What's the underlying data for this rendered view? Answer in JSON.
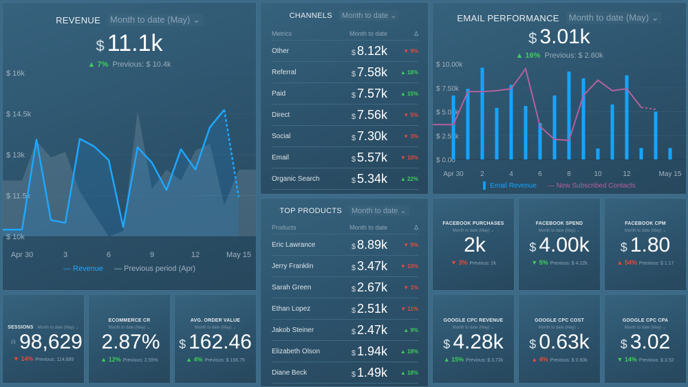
{
  "revenue": {
    "title": "REVENUE",
    "period": "Month to date (May)",
    "currency": "$",
    "value": "11.1k",
    "delta": "7%",
    "delta_dir": "up",
    "previous": "Previous: $ 10.4k",
    "chart_data": {
      "type": "line",
      "x": [
        "Apr 29",
        "Apr 30",
        "May 1",
        "May 2",
        "May 3",
        "May 4",
        "May 5",
        "May 6",
        "May 7",
        "May 8",
        "May 9",
        "May 10",
        "May 11",
        "May 12",
        "May 13",
        "May 14",
        "May 15"
      ],
      "xticks": [
        "Apr 30",
        "3",
        "6",
        "9",
        "12",
        "May 15"
      ],
      "yticks": [
        "$ 10k",
        "$ 11.5k",
        "$ 13k",
        "$ 14.5k",
        "$ 16k"
      ],
      "ylim": [
        10000,
        16000
      ],
      "series": [
        {
          "name": "Revenue",
          "color": "#1ea7ff",
          "values": [
            10250,
            10250,
            13550,
            10600,
            10500,
            13580,
            13300,
            12800,
            10350,
            13270,
            12700,
            11700,
            13200,
            12450,
            14000,
            14650,
            11450
          ],
          "last_segment_dashed": true
        },
        {
          "name": "Previous period (Apr)",
          "color": "#8a9ba8",
          "style": "area",
          "values": [
            12050,
            12050,
            13500,
            12900,
            13100,
            11650,
            10800,
            10000,
            10200,
            14600,
            11750,
            12450,
            12050,
            13150,
            13400,
            11150,
            12450
          ]
        }
      ]
    }
  },
  "channels": {
    "title": "CHANNELS",
    "period": "Month to date",
    "headers": [
      "Metrics",
      "Month to date",
      "Δ"
    ],
    "rows": [
      {
        "name": "Other",
        "cur": "$",
        "value": "8.12k",
        "delta": "9%",
        "dir": "dn"
      },
      {
        "name": "Referral",
        "cur": "$",
        "value": "7.58k",
        "delta": "18%",
        "dir": "up"
      },
      {
        "name": "Paid",
        "cur": "$",
        "value": "7.57k",
        "delta": "15%",
        "dir": "up"
      },
      {
        "name": "Direct",
        "cur": "$",
        "value": "7.56k",
        "delta": "5%",
        "dir": "dn"
      },
      {
        "name": "Social",
        "cur": "$",
        "value": "7.30k",
        "delta": "3%",
        "dir": "dn"
      },
      {
        "name": "Email",
        "cur": "$",
        "value": "5.57k",
        "delta": "10%",
        "dir": "dn"
      },
      {
        "name": "Organic Search",
        "cur": "$",
        "value": "5.34k",
        "delta": "22%",
        "dir": "up"
      }
    ]
  },
  "products": {
    "title": "TOP PRODUCTS",
    "period": "Month to date",
    "headers": [
      "Products",
      "Month to date",
      "Δ"
    ],
    "rows": [
      {
        "name": "Eric Lawrance",
        "cur": "$",
        "value": "8.89k",
        "delta": "9%",
        "dir": "dn"
      },
      {
        "name": "Jerry Franklin",
        "cur": "$",
        "value": "3.47k",
        "delta": "10%",
        "dir": "dn"
      },
      {
        "name": "Sarah Green",
        "cur": "$",
        "value": "2.67k",
        "delta": "1%",
        "dir": "dn"
      },
      {
        "name": "Ethan Lopez",
        "cur": "$",
        "value": "2.51k",
        "delta": "11%",
        "dir": "dn"
      },
      {
        "name": "Jakob Steiner",
        "cur": "$",
        "value": "2.47k",
        "delta": "9%",
        "dir": "up"
      },
      {
        "name": "Elizabeth Olson",
        "cur": "$",
        "value": "1.94k",
        "delta": "18%",
        "dir": "up"
      },
      {
        "name": "Diane Beck",
        "cur": "$",
        "value": "1.49k",
        "delta": "18%",
        "dir": "up"
      }
    ]
  },
  "email": {
    "title": "EMAIL PERFORMANCE",
    "period": "Month to date (May)",
    "currency": "$",
    "value": "3.01k",
    "delta": "16%",
    "delta_dir": "up",
    "previous": "Previous: $ 2.60k",
    "chart_data": {
      "type": "bar+line",
      "x": [
        "Apr 30",
        "May 1",
        "May 2",
        "May 3",
        "May 4",
        "May 5",
        "May 6",
        "May 7",
        "May 8",
        "May 9",
        "May 10",
        "May 11",
        "May 12",
        "May 13",
        "May 14",
        "May 15"
      ],
      "xticks": [
        "Apr 30",
        "2",
        "4",
        "6",
        "8",
        "10",
        "12",
        "May 15"
      ],
      "yticks": [
        "$ 0.00",
        "$ 2.50k",
        "$ 5.00k",
        "$ 7.50k",
        "$ 10.00k"
      ],
      "ylim": [
        0,
        10000
      ],
      "series": [
        {
          "name": "Email Revenue",
          "type": "bar",
          "color": "#15a4ff",
          "values": [
            6700,
            7400,
            9600,
            5400,
            7800,
            5600,
            3800,
            6700,
            9200,
            8500,
            1150,
            5750,
            8800,
            1200,
            5000,
            1200
          ]
        },
        {
          "name": "New Subscribed Contacts",
          "type": "line",
          "color": "#b4609e",
          "values": [
            3650,
            7100,
            7100,
            7200,
            7400,
            9500,
            3450,
            2100,
            2000,
            6700,
            8300,
            7200,
            7400,
            5450,
            5250,
            null
          ],
          "last_segment_dashed": true
        }
      ]
    }
  },
  "tiles": [
    {
      "title": "SESSIONS",
      "period": "Month to date (May)",
      "cur": "",
      "value": "98,629",
      "delta": "14%",
      "dir": "dn",
      "arrow": "down",
      "previous": "Previous: 114,689",
      "icon": "user-icon"
    },
    {
      "title": "ECOMMERCE CR",
      "period": "Month to date (May)",
      "cur": "",
      "value": "2.87%",
      "delta": "12%",
      "dir": "up",
      "arrow": "up",
      "previous": "Previous: 2.55%"
    },
    {
      "title": "AVG. ORDER VALUE",
      "period": "Month to date (May)",
      "cur": "$",
      "value": "162.46",
      "delta": "4%",
      "dir": "up",
      "arrow": "up",
      "previous": "Previous: $ 156.75"
    },
    {
      "title": "FACEBOOK PURCHASES",
      "period": "Month to date (May)",
      "cur": "",
      "value": "2k",
      "delta": "3%",
      "dir": "dn",
      "arrow": "down",
      "previous": "Previous: 2k"
    },
    {
      "title": "FACEBOOK SPEND",
      "period": "Month to date (May)",
      "cur": "$",
      "value": "4.00k",
      "delta": "5%",
      "dir": "up",
      "arrow": "down",
      "previous": "Previous: $ 4.22k"
    },
    {
      "title": "FACEBOOK CPM",
      "period": "Month to date (May)",
      "cur": "$",
      "value": "1.80",
      "delta": "54%",
      "dir": "dn",
      "arrow": "up",
      "previous": "Previous: $ 1.17"
    },
    {
      "title": "GOOGLE CPC REVENUE",
      "period": "Month to date (May)",
      "cur": "$",
      "value": "4.28k",
      "delta": "15%",
      "dir": "up",
      "arrow": "up",
      "previous": "Previous: $ 3.72k"
    },
    {
      "title": "GOOGLE CPC COST",
      "period": "Month to date (May)",
      "cur": "$",
      "value": "0.63k",
      "delta": "4%",
      "dir": "dn",
      "arrow": "up",
      "previous": "Previous: $ 0.60k"
    },
    {
      "title": "GOOGLE CPC CPA",
      "period": "Month to date (May)",
      "cur": "$",
      "value": "3.02",
      "delta": "14%",
      "dir": "up",
      "arrow": "down",
      "previous": "Previous: $ 3.52"
    }
  ],
  "colors": {
    "up": "#3fcf5a",
    "down": "#e64b3c",
    "revenue": "#1ea7ff",
    "contacts": "#b4609e"
  }
}
